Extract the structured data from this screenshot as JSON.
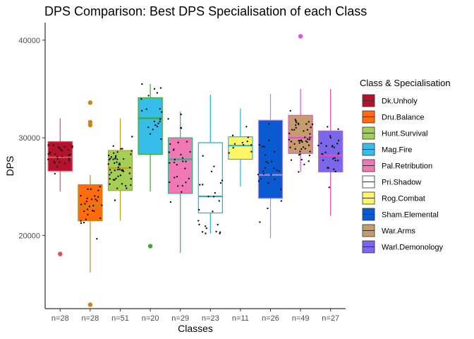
{
  "chart_data": {
    "type": "boxplot",
    "title": "DPS Comparison: Best DPS Specialisation of each Class",
    "xlabel": "Classes",
    "ylabel": "DPS",
    "ylim": [
      12500,
      41800
    ],
    "yticks": [
      20000,
      30000,
      40000
    ],
    "y_tick_labels": [
      "20000",
      "30000",
      "40000"
    ],
    "grid": false,
    "legend": {
      "title": "Class & Specialisation",
      "placement": "right"
    },
    "categories": [
      "n=28",
      "n=28",
      "n=51",
      "n=20",
      "n=29",
      "n=23",
      "n=11",
      "n=26",
      "n=49",
      "n=27"
    ],
    "series": [
      {
        "name": "Dk.Unholy",
        "fill": "#b5122e",
        "line": "#e8485a",
        "whisker_low": 24500,
        "q1": 26600,
        "median": 28000,
        "q3": 29600,
        "whisker_high": 32000,
        "outliers": [
          18100
        ]
      },
      {
        "name": "Dru.Balance",
        "fill": "#ff6b0d",
        "line": "#c8861a",
        "whisker_low": 16200,
        "q1": 21500,
        "median": 23000,
        "q3": 25200,
        "whisker_high": 26200,
        "outliers": [
          33600,
          31600,
          31300,
          12900
        ]
      },
      {
        "name": "Hunt.Survival",
        "fill": "#a3cf55",
        "line": "#c89b1e",
        "whisker_low": 21500,
        "q1": 24600,
        "median": 26900,
        "q3": 28700,
        "whisker_high": 32000,
        "outliers": []
      },
      {
        "name": "Mag.Fire",
        "fill": "#36bdea",
        "line": "#3aaa2a",
        "whisker_low": 24500,
        "q1": 28300,
        "median": 32000,
        "q3": 34100,
        "whisker_high": 35500,
        "outliers": [
          18900
        ]
      },
      {
        "name": "Pal.Retribution",
        "fill": "#f079b5",
        "line": "#2cb37f",
        "whisker_low": 18200,
        "q1": 24300,
        "median": 27800,
        "q3": 30000,
        "whisker_high": 32700,
        "outliers": []
      },
      {
        "name": "Pri.Shadow",
        "fill": "#ffffff",
        "line": "#1eb3c9",
        "whisker_low": 20200,
        "q1": 22300,
        "median": 24000,
        "q3": 29500,
        "whisker_high": 34400,
        "outliers": []
      },
      {
        "name": "Rog.Combat",
        "fill": "#fff565",
        "line": "#29b6d4",
        "whisker_low": 25000,
        "q1": 27800,
        "median": 29200,
        "q3": 30100,
        "whisker_high": 33000,
        "outliers": []
      },
      {
        "name": "Sham.Elemental",
        "fill": "#0a5ad2",
        "line": "#9b8fee",
        "whisker_low": 19700,
        "q1": 23800,
        "median": 26200,
        "q3": 31800,
        "whisker_high": 34500,
        "outliers": []
      },
      {
        "name": "War.Arms",
        "fill": "#c69b6d",
        "line": "#e64ee0",
        "whisker_low": 26500,
        "q1": 28400,
        "median": 30000,
        "q3": 32300,
        "whisker_high": 35000,
        "outliers": [
          40400
        ]
      },
      {
        "name": "Warl.Demonology",
        "fill": "#7b67ea",
        "line": "#ea4bb7",
        "whisker_low": 22000,
        "q1": 26500,
        "median": 28200,
        "q3": 30700,
        "whisker_high": 35000,
        "outliers": []
      }
    ]
  }
}
